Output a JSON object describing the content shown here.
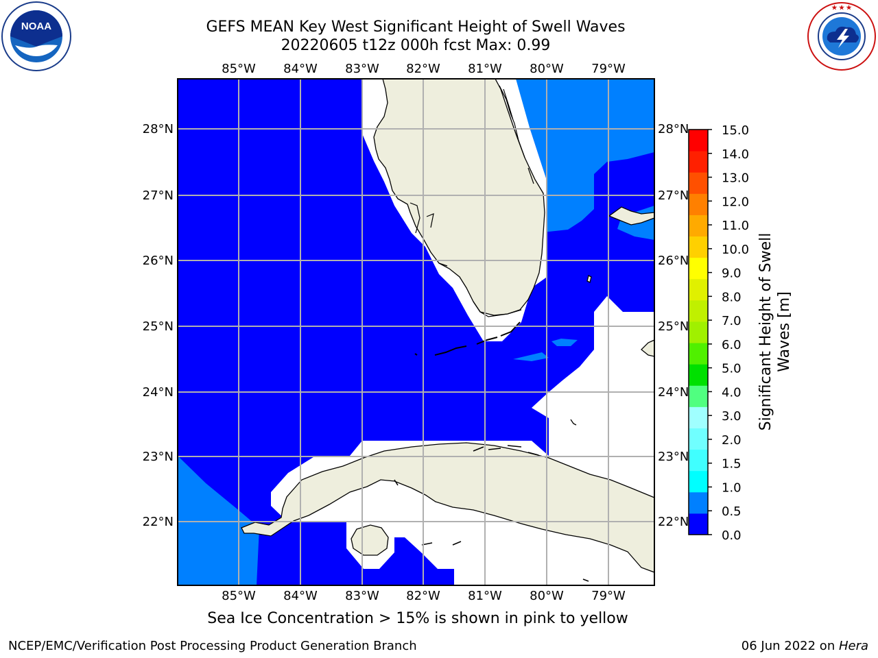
{
  "header": {
    "title_line1": "GEFS MEAN Key West Significant Height of Swell Waves",
    "title_line2": "20220605 t12z 000h fcst   Max: 0.99"
  },
  "logos": {
    "noaa": {
      "text": "NOAA",
      "ring_text": "NATIONAL OCEANIC AND ATMOSPHERIC ADMINISTRATION · U.S. DEPARTMENT OF COMMERCE"
    },
    "nws": {
      "ring_text": "NATIONAL WEATHER SERVICE"
    }
  },
  "map": {
    "lon_ticks": [
      "85°W",
      "84°W",
      "83°W",
      "82°W",
      "81°W",
      "80°W",
      "79°W"
    ],
    "lat_ticks": [
      "28°N",
      "27°N",
      "26°N",
      "25°N",
      "24°N",
      "23°N",
      "22°N"
    ],
    "colors": {
      "swell_0_0_5": "#0000ff",
      "swell_0_5_1": "#0080ff",
      "land": "#eeeedd",
      "no_data": "#ffffff",
      "grid": "#b0b0b0"
    }
  },
  "colorbar": {
    "title_line1": "Significant Height of Swell",
    "title_line2": "Waves [m]",
    "levels": [
      "0.0",
      "0.5",
      "1.0",
      "1.5",
      "2.0",
      "3.0",
      "4.0",
      "5.0",
      "6.0",
      "7.0",
      "8.0",
      "9.0",
      "10.0",
      "11.0",
      "12.0",
      "13.0",
      "14.0",
      "15.0"
    ],
    "colors": [
      "#0000ff",
      "#0080ff",
      "#00ffff",
      "#40ffff",
      "#70ffff",
      "#a0ffff",
      "#50ff80",
      "#00e000",
      "#50f000",
      "#a0f000",
      "#c0f000",
      "#e0f000",
      "#ffff00",
      "#ffd000",
      "#ffaa00",
      "#ff8000",
      "#ff5000",
      "#ff2000",
      "#ff0000"
    ]
  },
  "footer": {
    "note": "Sea Ice Concentration > 15% is shown in pink to yellow",
    "left": "NCEP/EMC/Verification Post Processing Product Generation Branch",
    "right_date": "06 Jun 2022 on ",
    "right_host": "Hera"
  }
}
